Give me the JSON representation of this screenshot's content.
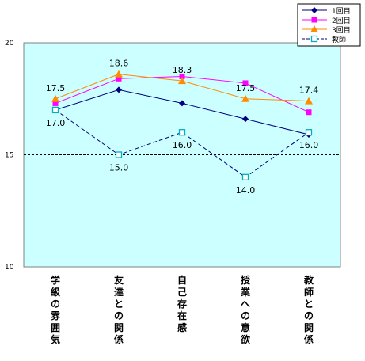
{
  "chart_data": {
    "type": "line",
    "categories": [
      [
        "学",
        "級",
        "の",
        "雰",
        "囲",
        "気"
      ],
      [
        "友",
        "達",
        "と",
        "の",
        "関",
        "係"
      ],
      [
        "自",
        "己",
        "存",
        "在",
        "感"
      ],
      [
        "授",
        "業",
        "へ",
        "の",
        "意",
        "欲"
      ],
      [
        "教",
        "師",
        "と",
        "の",
        "関",
        "係"
      ]
    ],
    "ylim": [
      10,
      20
    ],
    "yticks": [
      "10",
      "15",
      "20"
    ],
    "reference_line": 15,
    "plot_background": "#ccffff",
    "series": [
      {
        "name": "1回目",
        "values": [
          17.0,
          17.9,
          17.3,
          16.6,
          15.9
        ],
        "color": "#000080",
        "marker": "diamond",
        "dash": false
      },
      {
        "name": "2回目",
        "values": [
          17.3,
          18.4,
          18.5,
          18.2,
          16.9
        ],
        "color": "#ff00ff",
        "marker": "square",
        "dash": false
      },
      {
        "name": "3回目",
        "values": [
          17.5,
          18.6,
          18.3,
          17.5,
          17.4
        ],
        "color": "#ff8c00",
        "marker": "triangle",
        "dash": false
      },
      {
        "name": "教師",
        "values": [
          17.0,
          15.0,
          16.0,
          14.0,
          16.0
        ],
        "color": "#000080",
        "marker": "open-square",
        "dash": true
      }
    ],
    "data_labels": [
      {
        "series": 2,
        "index": 0,
        "text": "17.5",
        "pos": "above"
      },
      {
        "series": 2,
        "index": 1,
        "text": "18.6",
        "pos": "above"
      },
      {
        "series": 2,
        "index": 2,
        "text": "18.3",
        "pos": "above"
      },
      {
        "series": 2,
        "index": 3,
        "text": "17.5",
        "pos": "above"
      },
      {
        "series": 2,
        "index": 4,
        "text": "17.4",
        "pos": "above"
      },
      {
        "series": 3,
        "index": 0,
        "text": "17.0",
        "pos": "below"
      },
      {
        "series": 3,
        "index": 1,
        "text": "15.0",
        "pos": "below"
      },
      {
        "series": 3,
        "index": 2,
        "text": "16.0",
        "pos": "below"
      },
      {
        "series": 3,
        "index": 3,
        "text": "14.0",
        "pos": "below"
      },
      {
        "series": 3,
        "index": 4,
        "text": "16.0",
        "pos": "below"
      }
    ],
    "legend_position": "top-right"
  }
}
